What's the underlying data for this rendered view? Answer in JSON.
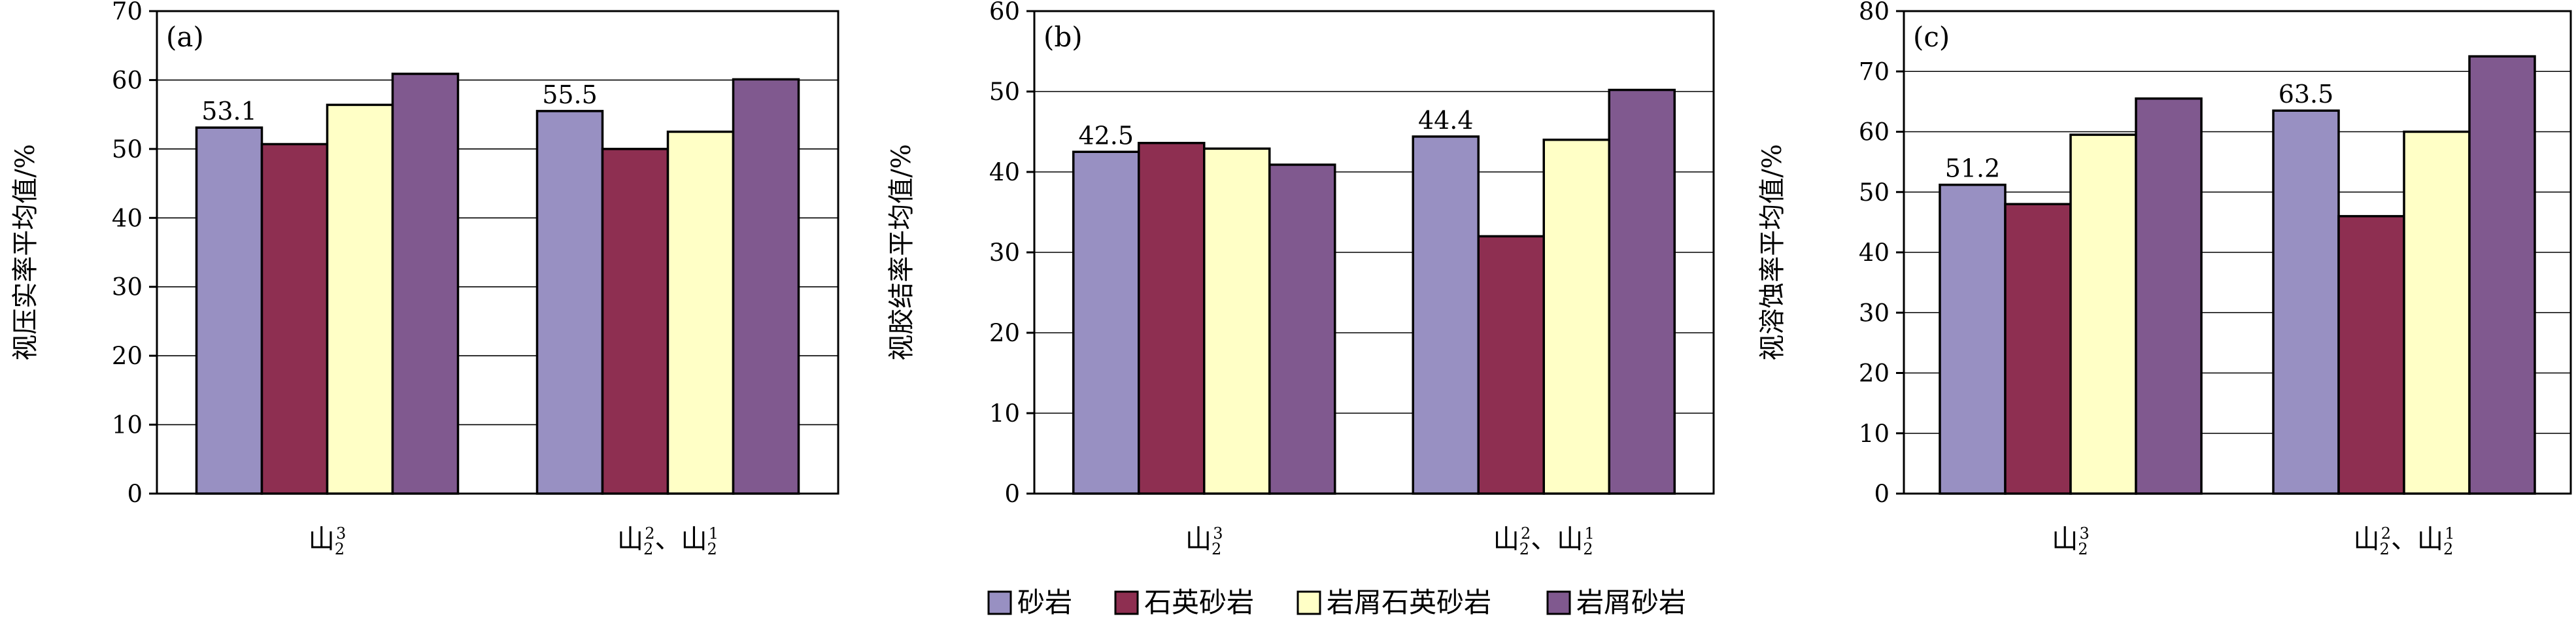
{
  "colors": {
    "series": [
      "#9890C2",
      "#8E2F51",
      "#FFFFC6",
      "#80598F"
    ],
    "axis": "#000000",
    "grid": "#000000"
  },
  "legend": {
    "placement": "bottom-center",
    "items": [
      {
        "label": "砂岩",
        "color": "#9890C2"
      },
      {
        "label": "石英砂岩",
        "color": "#8E2F51"
      },
      {
        "label": "岩屑石英砂岩",
        "color": "#FFFFC6"
      },
      {
        "label": "岩屑砂岩",
        "color": "#80598F"
      }
    ]
  },
  "categories": [
    {
      "base": "山",
      "sub": "2",
      "sup": "3"
    },
    {
      "parts": [
        {
          "base": "山",
          "sub": "2",
          "sup": "2"
        },
        {
          "text": "、"
        },
        {
          "base": "山",
          "sub": "2",
          "sup": "1"
        }
      ]
    }
  ],
  "chart_data": [
    {
      "type": "bar",
      "panel_label": "(a)",
      "ylabel": "视压实率平均值/%",
      "ylim": [
        0,
        70
      ],
      "yticks": [
        0,
        10,
        20,
        30,
        40,
        50,
        60,
        70
      ],
      "grid": true,
      "series": [
        {
          "name": "砂岩",
          "values": [
            53.1,
            55.5
          ]
        },
        {
          "name": "石英砂岩",
          "values": [
            50.7,
            50.0
          ]
        },
        {
          "name": "岩屑石英砂岩",
          "values": [
            56.4,
            52.5
          ]
        },
        {
          "name": "岩屑砂岩",
          "values": [
            60.9,
            60.1
          ]
        }
      ],
      "data_labels": [
        {
          "series": 0,
          "category": 0,
          "text": "53.1"
        },
        {
          "series": 0,
          "category": 1,
          "text": "55.5"
        }
      ]
    },
    {
      "type": "bar",
      "panel_label": "(b)",
      "ylabel": "视胶结率平均值/%",
      "ylim": [
        0,
        60
      ],
      "yticks": [
        0,
        10,
        20,
        30,
        40,
        50,
        60
      ],
      "grid": true,
      "series": [
        {
          "name": "砂岩",
          "values": [
            42.5,
            44.4
          ]
        },
        {
          "name": "石英砂岩",
          "values": [
            43.6,
            32.0
          ]
        },
        {
          "name": "岩屑石英砂岩",
          "values": [
            42.9,
            44.0
          ]
        },
        {
          "name": "岩屑砂岩",
          "values": [
            40.9,
            50.2
          ]
        }
      ],
      "data_labels": [
        {
          "series": 0,
          "category": 0,
          "text": "42.5"
        },
        {
          "series": 0,
          "category": 1,
          "text": "44.4"
        }
      ]
    },
    {
      "type": "bar",
      "panel_label": "(c)",
      "ylabel": "视溶蚀率平均值/%",
      "ylim": [
        0,
        80
      ],
      "yticks": [
        0,
        10,
        20,
        30,
        40,
        50,
        60,
        70,
        80
      ],
      "grid": true,
      "series": [
        {
          "name": "砂岩",
          "values": [
            51.2,
            63.5
          ]
        },
        {
          "name": "石英砂岩",
          "values": [
            48.0,
            46.0
          ]
        },
        {
          "name": "岩屑石英砂岩",
          "values": [
            59.5,
            60.0
          ]
        },
        {
          "name": "岩屑砂岩",
          "values": [
            65.5,
            72.5
          ]
        }
      ],
      "data_labels": [
        {
          "series": 0,
          "category": 0,
          "text": "51.2"
        },
        {
          "series": 0,
          "category": 1,
          "text": "63.5"
        }
      ]
    }
  ]
}
